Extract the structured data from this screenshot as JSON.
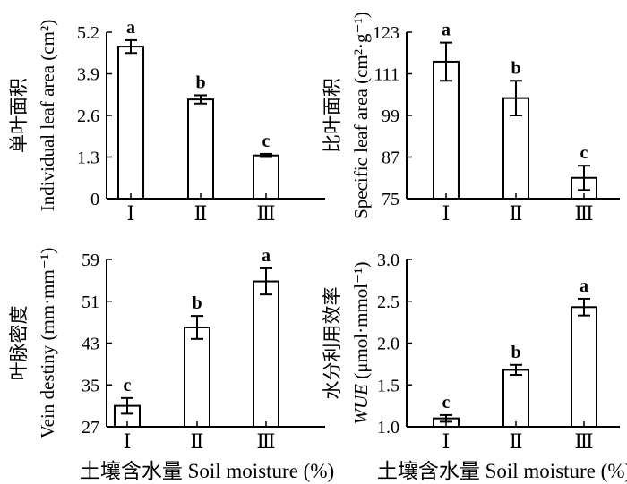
{
  "chart_data": [
    {
      "type": "bar",
      "categories": [
        "Ⅰ",
        "Ⅱ",
        "Ⅲ"
      ],
      "values": [
        4.75,
        3.1,
        1.35
      ],
      "errors": [
        0.2,
        0.13,
        0.05
      ],
      "labels": [
        "a",
        "b",
        "c"
      ],
      "ylabel_cn": "单叶面积",
      "ylabel": "Individual leaf area (cm²)",
      "ylim": [
        0,
        5.2
      ],
      "yticks": [
        0,
        1.3,
        2.6,
        3.9,
        5.2
      ],
      "ytick_labels": [
        "0",
        "1.3",
        "2.6",
        "3.9",
        "5.2"
      ]
    },
    {
      "type": "bar",
      "categories": [
        "Ⅰ",
        "Ⅱ",
        "Ⅲ"
      ],
      "values": [
        114.5,
        104.0,
        81.0
      ],
      "errors": [
        5.5,
        5.0,
        3.5
      ],
      "labels": [
        "a",
        "b",
        "c"
      ],
      "ylabel_cn": "比叶面积",
      "ylabel": "Specific leaf area (cm²·g⁻¹)",
      "ylim": [
        75,
        123
      ],
      "yticks": [
        75,
        87,
        99,
        111,
        123
      ],
      "ytick_labels": [
        "75",
        "87",
        "99",
        "111",
        "123"
      ]
    },
    {
      "type": "bar",
      "categories": [
        "Ⅰ",
        "Ⅱ",
        "Ⅲ"
      ],
      "values": [
        31.0,
        46.0,
        54.8
      ],
      "errors": [
        1.5,
        2.2,
        2.5
      ],
      "labels": [
        "c",
        "b",
        "a"
      ],
      "ylabel_cn": "叶脉密度",
      "ylabel": "Vein destiny (mm·mm⁻¹)",
      "ylim": [
        27,
        59
      ],
      "yticks": [
        27,
        35,
        43,
        51,
        59
      ],
      "ytick_labels": [
        "27",
        "35",
        "43",
        "51",
        "59"
      ],
      "xlabel": "土壤含水量 Soil moisture (%)"
    },
    {
      "type": "bar",
      "categories": [
        "Ⅰ",
        "Ⅱ",
        "Ⅲ"
      ],
      "values": [
        1.1,
        1.68,
        2.43
      ],
      "errors": [
        0.04,
        0.06,
        0.1
      ],
      "labels": [
        "c",
        "b",
        "a"
      ],
      "ylabel_cn": "水分利用效率",
      "ylabel_italic": "WUE",
      "ylabel": " (μmol·mmol⁻¹)",
      "ylim": [
        1.0,
        3.0
      ],
      "yticks": [
        1.0,
        1.5,
        2.0,
        2.5,
        3.0
      ],
      "ytick_labels": [
        "1.0",
        "1.5",
        "2.0",
        "2.5",
        "3.0"
      ],
      "xlabel": "土壤含水量 Soil moisture (%)"
    }
  ]
}
